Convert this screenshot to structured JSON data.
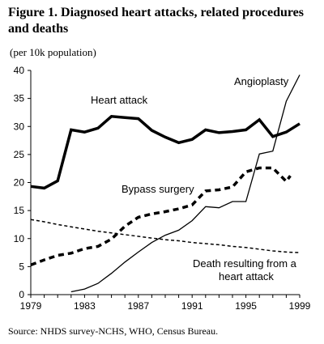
{
  "title": "Figure 1. Diagnosed heart attacks, related procedures and deaths",
  "unit_label": "(per 10k population)",
  "source": "Source: NHDS survey-NCHS, WHO, Census Bureau.",
  "chart_data": {
    "type": "line",
    "xlim": [
      1979,
      1999
    ],
    "ylim": [
      0,
      40
    ],
    "x_ticks": [
      1979,
      1983,
      1987,
      1991,
      1995,
      1999
    ],
    "y_ticks": [
      0,
      5,
      10,
      15,
      20,
      25,
      30,
      35,
      40
    ],
    "grid": false,
    "series": [
      {
        "name": "Heart attack",
        "style": "thick-solid",
        "points": [
          [
            1979,
            19.3
          ],
          [
            1980,
            19.0
          ],
          [
            1981,
            20.3
          ],
          [
            1982,
            29.4
          ],
          [
            1983,
            29.0
          ],
          [
            1984,
            29.7
          ],
          [
            1985,
            31.8
          ],
          [
            1986,
            31.6
          ],
          [
            1987,
            31.4
          ],
          [
            1988,
            29.3
          ],
          [
            1989,
            28.1
          ],
          [
            1990,
            27.1
          ],
          [
            1991,
            27.7
          ],
          [
            1992,
            29.4
          ],
          [
            1993,
            28.9
          ],
          [
            1994,
            29.1
          ],
          [
            1995,
            29.4
          ],
          [
            1996,
            31.2
          ],
          [
            1997,
            28.2
          ],
          [
            1998,
            29.0
          ],
          [
            1999,
            30.5
          ]
        ]
      },
      {
        "name": "Angioplasty",
        "style": "thin-solid",
        "points": [
          [
            1982,
            0.5
          ],
          [
            1983,
            1.0
          ],
          [
            1984,
            2.0
          ],
          [
            1985,
            3.8
          ],
          [
            1986,
            5.8
          ],
          [
            1987,
            7.6
          ],
          [
            1988,
            9.3
          ],
          [
            1989,
            10.6
          ],
          [
            1990,
            11.5
          ],
          [
            1991,
            13.2
          ],
          [
            1992,
            15.7
          ],
          [
            1993,
            15.5
          ],
          [
            1994,
            16.6
          ],
          [
            1995,
            16.6
          ],
          [
            1996,
            25.1
          ],
          [
            1997,
            25.6
          ],
          [
            1998,
            34.5
          ],
          [
            1999,
            39.2
          ]
        ]
      },
      {
        "name": "Bypass surgery",
        "style": "thick-dashed",
        "points": [
          [
            1979,
            5.3
          ],
          [
            1980,
            6.2
          ],
          [
            1981,
            7.0
          ],
          [
            1982,
            7.4
          ],
          [
            1983,
            8.2
          ],
          [
            1984,
            8.6
          ],
          [
            1985,
            9.9
          ],
          [
            1986,
            12.2
          ],
          [
            1987,
            13.8
          ],
          [
            1988,
            14.4
          ],
          [
            1989,
            14.8
          ],
          [
            1990,
            15.3
          ],
          [
            1991,
            16.0
          ],
          [
            1992,
            18.5
          ],
          [
            1993,
            18.7
          ],
          [
            1994,
            19.2
          ],
          [
            1995,
            21.9
          ],
          [
            1996,
            22.6
          ],
          [
            1997,
            22.6
          ],
          [
            1998,
            20.2
          ],
          [
            1998.3,
            21.2
          ]
        ]
      },
      {
        "name": "Death resulting from a heart attack",
        "style": "thin-dashed",
        "points": [
          [
            1979,
            13.4
          ],
          [
            1980,
            13.0
          ],
          [
            1981,
            12.5
          ],
          [
            1982,
            12.1
          ],
          [
            1983,
            11.7
          ],
          [
            1984,
            11.3
          ],
          [
            1985,
            11.0
          ],
          [
            1986,
            10.7
          ],
          [
            1987,
            10.4
          ],
          [
            1988,
            10.1
          ],
          [
            1989,
            9.8
          ],
          [
            1990,
            9.6
          ],
          [
            1991,
            9.3
          ],
          [
            1992,
            9.1
          ],
          [
            1993,
            8.9
          ],
          [
            1994,
            8.6
          ],
          [
            1995,
            8.4
          ],
          [
            1996,
            8.1
          ],
          [
            1997,
            7.8
          ],
          [
            1998,
            7.6
          ],
          [
            1999,
            7.5
          ]
        ]
      }
    ],
    "annotations": [
      {
        "text": "Heart attack"
      },
      {
        "text": "Angioplasty"
      },
      {
        "text": "Bypass surgery"
      },
      {
        "text": "Death resulting from a"
      },
      {
        "text": "heart attack"
      }
    ]
  }
}
